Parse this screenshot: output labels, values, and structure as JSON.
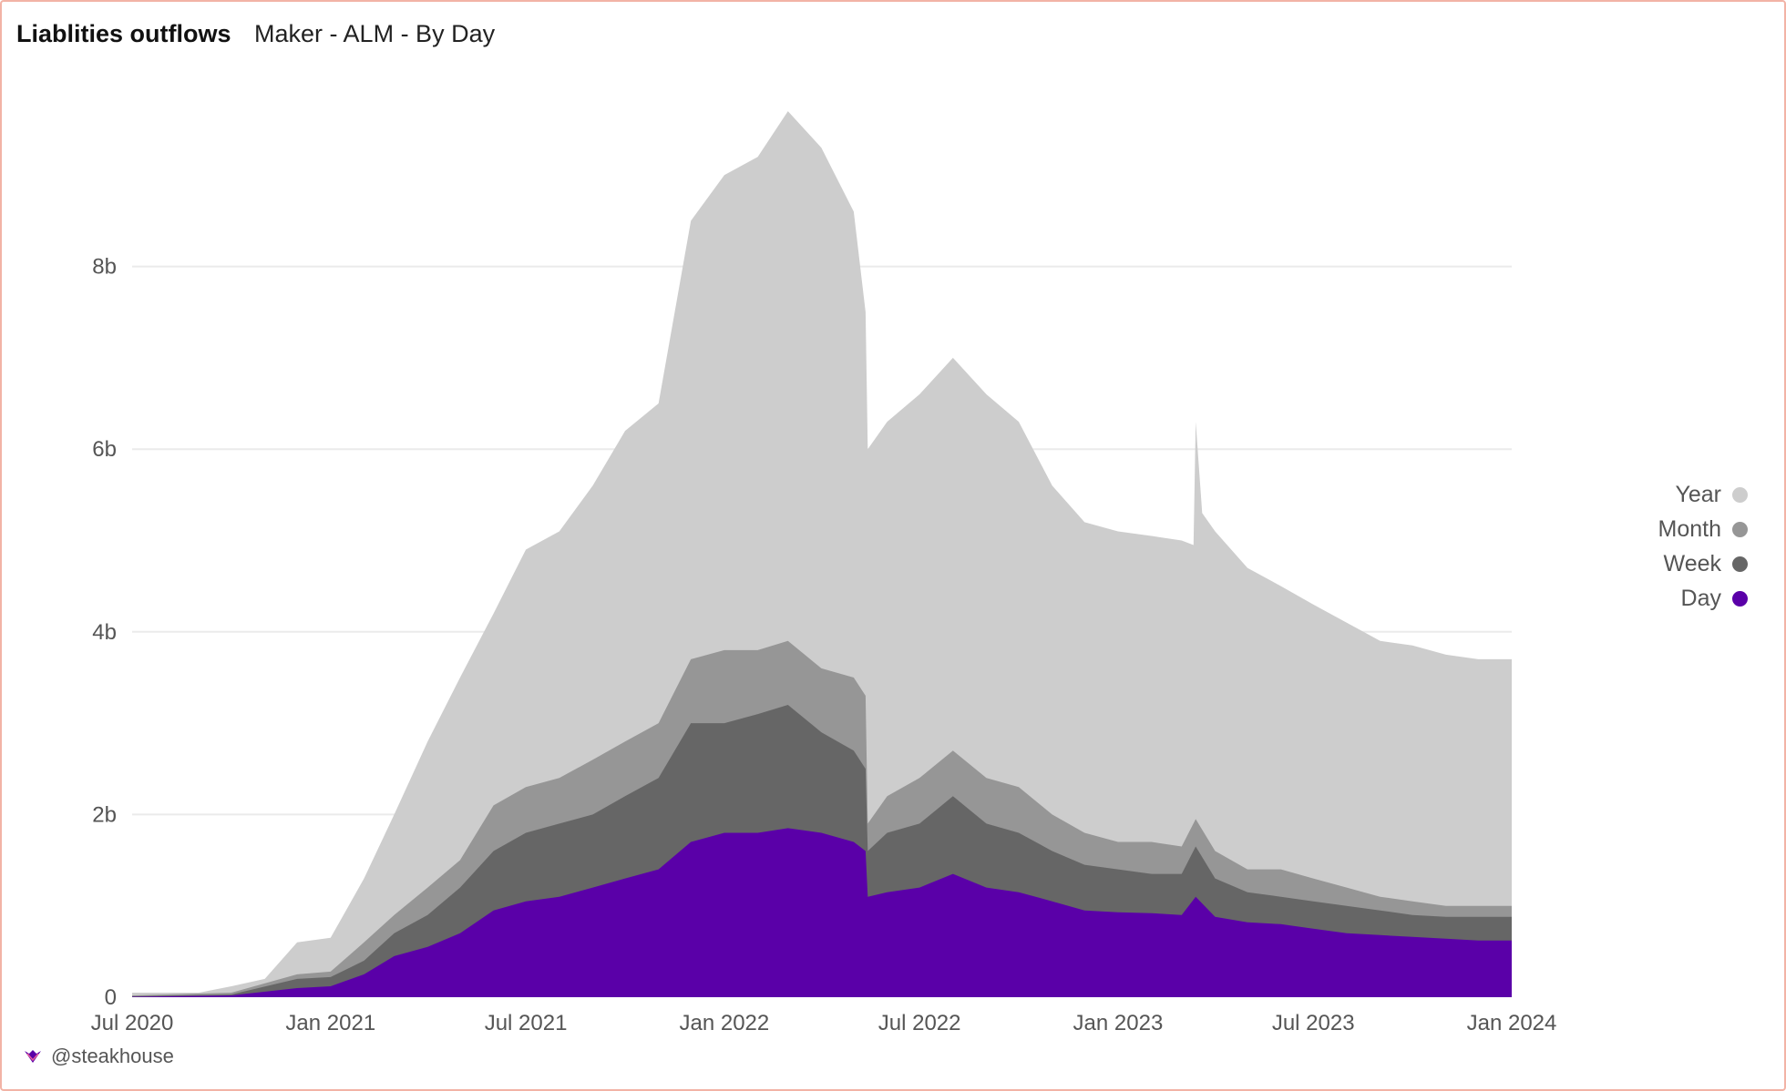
{
  "header": {
    "title": "Liablities outflows",
    "subtitle": "Maker - ALM - By Day"
  },
  "footer": {
    "handle": "@steakhouse"
  },
  "colors": {
    "Year": "#cdcdcd",
    "Month": "#969696",
    "Week": "#666666",
    "Day": "#5a00a8",
    "grid": "#ebebeb"
  },
  "chart_data": {
    "type": "area",
    "stacked": false,
    "y_tick_labels": [
      "0",
      "2b",
      "4b",
      "6b",
      "8b"
    ],
    "y_ticks": [
      0,
      2000000000,
      4000000000,
      6000000000,
      8000000000
    ],
    "ylim": [
      0,
      10000000000
    ],
    "x_tick_labels": [
      "Jul 2020",
      "Jan 2021",
      "Jul 2021",
      "Jan 2022",
      "Jul 2022",
      "Jan 2023",
      "Jul 2023",
      "Jan 2024"
    ],
    "x_ticks": [
      "2020-07-01",
      "2021-01-01",
      "2021-07-01",
      "2022-01-01",
      "2022-07-01",
      "2023-01-01",
      "2023-07-01",
      "2024-01-01"
    ],
    "xlim": [
      "2020-07-01",
      "2024-01-01"
    ],
    "grid": true,
    "legend_position": "right",
    "series": [
      {
        "name": "Year",
        "points": [
          [
            "2020-07-01",
            50000000.0
          ],
          [
            "2020-09-01",
            50000000.0
          ],
          [
            "2020-10-01",
            120000000.0
          ],
          [
            "2020-11-01",
            200000000.0
          ],
          [
            "2020-12-01",
            600000000.0
          ],
          [
            "2021-01-01",
            650000000.0
          ],
          [
            "2021-02-01",
            1300000000.0
          ],
          [
            "2021-03-01",
            2000000000.0
          ],
          [
            "2021-04-01",
            2800000000.0
          ],
          [
            "2021-05-01",
            3500000000.0
          ],
          [
            "2021-06-01",
            4200000000.0
          ],
          [
            "2021-07-01",
            4900000000.0
          ],
          [
            "2021-08-01",
            5100000000.0
          ],
          [
            "2021-09-01",
            5600000000.0
          ],
          [
            "2021-10-01",
            6200000000.0
          ],
          [
            "2021-11-01",
            6500000000.0
          ],
          [
            "2021-12-01",
            8500000000.0
          ],
          [
            "2022-01-01",
            9000000000.0
          ],
          [
            "2022-02-01",
            9200000000.0
          ],
          [
            "2022-03-01",
            9700000000.0
          ],
          [
            "2022-04-01",
            9300000000.0
          ],
          [
            "2022-05-01",
            8600000000.0
          ],
          [
            "2022-05-12",
            7500000000.0
          ],
          [
            "2022-05-14",
            6000000000.0
          ],
          [
            "2022-06-01",
            6300000000.0
          ],
          [
            "2022-07-01",
            6600000000.0
          ],
          [
            "2022-08-01",
            7000000000.0
          ],
          [
            "2022-09-01",
            6600000000.0
          ],
          [
            "2022-10-01",
            6300000000.0
          ],
          [
            "2022-11-01",
            5600000000.0
          ],
          [
            "2022-12-01",
            5200000000.0
          ],
          [
            "2023-01-01",
            5100000000.0
          ],
          [
            "2023-02-01",
            5050000000.0
          ],
          [
            "2023-03-01",
            5000000000.0
          ],
          [
            "2023-03-12",
            4950000000.0
          ],
          [
            "2023-03-14",
            6300000000.0
          ],
          [
            "2023-03-20",
            5300000000.0
          ],
          [
            "2023-04-01",
            5100000000.0
          ],
          [
            "2023-05-01",
            4700000000.0
          ],
          [
            "2023-06-01",
            4500000000.0
          ],
          [
            "2023-07-01",
            4300000000.0
          ],
          [
            "2023-08-01",
            4100000000.0
          ],
          [
            "2023-09-01",
            3900000000.0
          ],
          [
            "2023-10-01",
            3850000000.0
          ],
          [
            "2023-11-01",
            3750000000.0
          ],
          [
            "2023-12-01",
            3700000000.0
          ],
          [
            "2024-01-01",
            3700000000.0
          ]
        ]
      },
      {
        "name": "Month",
        "points": [
          [
            "2020-07-01",
            20000000.0
          ],
          [
            "2020-10-01",
            50000000.0
          ],
          [
            "2020-12-01",
            250000000.0
          ],
          [
            "2021-01-01",
            280000000.0
          ],
          [
            "2021-02-01",
            600000000.0
          ],
          [
            "2021-03-01",
            900000000.0
          ],
          [
            "2021-04-01",
            1200000000.0
          ],
          [
            "2021-05-01",
            1500000000.0
          ],
          [
            "2021-06-01",
            2100000000.0
          ],
          [
            "2021-07-01",
            2300000000.0
          ],
          [
            "2021-08-01",
            2400000000.0
          ],
          [
            "2021-09-01",
            2600000000.0
          ],
          [
            "2021-10-01",
            2800000000.0
          ],
          [
            "2021-11-01",
            3000000000.0
          ],
          [
            "2021-12-01",
            3700000000.0
          ],
          [
            "2022-01-01",
            3800000000.0
          ],
          [
            "2022-02-01",
            3800000000.0
          ],
          [
            "2022-03-01",
            3900000000.0
          ],
          [
            "2022-04-01",
            3600000000.0
          ],
          [
            "2022-05-01",
            3500000000.0
          ],
          [
            "2022-05-12",
            3300000000.0
          ],
          [
            "2022-05-14",
            1900000000.0
          ],
          [
            "2022-06-01",
            2200000000.0
          ],
          [
            "2022-07-01",
            2400000000.0
          ],
          [
            "2022-08-01",
            2700000000.0
          ],
          [
            "2022-09-01",
            2400000000.0
          ],
          [
            "2022-10-01",
            2300000000.0
          ],
          [
            "2022-11-01",
            2000000000.0
          ],
          [
            "2022-12-01",
            1800000000.0
          ],
          [
            "2023-01-01",
            1700000000.0
          ],
          [
            "2023-02-01",
            1700000000.0
          ],
          [
            "2023-03-01",
            1650000000.0
          ],
          [
            "2023-03-14",
            1950000000.0
          ],
          [
            "2023-04-01",
            1600000000.0
          ],
          [
            "2023-05-01",
            1400000000.0
          ],
          [
            "2023-06-01",
            1400000000.0
          ],
          [
            "2023-07-01",
            1300000000.0
          ],
          [
            "2023-08-01",
            1200000000.0
          ],
          [
            "2023-09-01",
            1100000000.0
          ],
          [
            "2023-10-01",
            1050000000.0
          ],
          [
            "2023-11-01",
            1000000000.0
          ],
          [
            "2023-12-01",
            1000000000.0
          ],
          [
            "2024-01-01",
            1000000000.0
          ]
        ]
      },
      {
        "name": "Week",
        "points": [
          [
            "2020-07-01",
            10000000.0
          ],
          [
            "2020-10-01",
            30000000.0
          ],
          [
            "2020-12-01",
            200000000.0
          ],
          [
            "2021-01-01",
            220000000.0
          ],
          [
            "2021-02-01",
            400000000.0
          ],
          [
            "2021-03-01",
            700000000.0
          ],
          [
            "2021-04-01",
            900000000.0
          ],
          [
            "2021-05-01",
            1200000000.0
          ],
          [
            "2021-06-01",
            1600000000.0
          ],
          [
            "2021-07-01",
            1800000000.0
          ],
          [
            "2021-08-01",
            1900000000.0
          ],
          [
            "2021-09-01",
            2000000000.0
          ],
          [
            "2021-10-01",
            2200000000.0
          ],
          [
            "2021-11-01",
            2400000000.0
          ],
          [
            "2021-12-01",
            3000000000.0
          ],
          [
            "2022-01-01",
            3000000000.0
          ],
          [
            "2022-02-01",
            3100000000.0
          ],
          [
            "2022-03-01",
            3200000000.0
          ],
          [
            "2022-04-01",
            2900000000.0
          ],
          [
            "2022-05-01",
            2700000000.0
          ],
          [
            "2022-05-12",
            2500000000.0
          ],
          [
            "2022-05-14",
            1600000000.0
          ],
          [
            "2022-06-01",
            1800000000.0
          ],
          [
            "2022-07-01",
            1900000000.0
          ],
          [
            "2022-08-01",
            2200000000.0
          ],
          [
            "2022-09-01",
            1900000000.0
          ],
          [
            "2022-10-01",
            1800000000.0
          ],
          [
            "2022-11-01",
            1600000000.0
          ],
          [
            "2022-12-01",
            1450000000.0
          ],
          [
            "2023-01-01",
            1400000000.0
          ],
          [
            "2023-02-01",
            1350000000.0
          ],
          [
            "2023-03-01",
            1350000000.0
          ],
          [
            "2023-03-14",
            1650000000.0
          ],
          [
            "2023-04-01",
            1300000000.0
          ],
          [
            "2023-05-01",
            1150000000.0
          ],
          [
            "2023-06-01",
            1100000000.0
          ],
          [
            "2023-07-01",
            1050000000.0
          ],
          [
            "2023-08-01",
            1000000000.0
          ],
          [
            "2023-09-01",
            950000000.0
          ],
          [
            "2023-10-01",
            900000000.0
          ],
          [
            "2023-11-01",
            880000000.0
          ],
          [
            "2023-12-01",
            880000000.0
          ],
          [
            "2024-01-01",
            880000000.0
          ]
        ]
      },
      {
        "name": "Day",
        "points": [
          [
            "2020-07-01",
            5000000.0
          ],
          [
            "2020-10-01",
            20000000.0
          ],
          [
            "2020-12-01",
            100000000.0
          ],
          [
            "2021-01-01",
            120000000.0
          ],
          [
            "2021-02-01",
            250000000.0
          ],
          [
            "2021-03-01",
            450000000.0
          ],
          [
            "2021-04-01",
            550000000.0
          ],
          [
            "2021-05-01",
            700000000.0
          ],
          [
            "2021-06-01",
            950000000.0
          ],
          [
            "2021-07-01",
            1050000000.0
          ],
          [
            "2021-08-01",
            1100000000.0
          ],
          [
            "2021-09-01",
            1200000000.0
          ],
          [
            "2021-10-01",
            1300000000.0
          ],
          [
            "2021-11-01",
            1400000000.0
          ],
          [
            "2021-12-01",
            1700000000.0
          ],
          [
            "2022-01-01",
            1800000000.0
          ],
          [
            "2022-02-01",
            1800000000.0
          ],
          [
            "2022-03-01",
            1850000000.0
          ],
          [
            "2022-04-01",
            1800000000.0
          ],
          [
            "2022-05-01",
            1700000000.0
          ],
          [
            "2022-05-12",
            1600000000.0
          ],
          [
            "2022-05-14",
            1100000000.0
          ],
          [
            "2022-06-01",
            1150000000.0
          ],
          [
            "2022-07-01",
            1200000000.0
          ],
          [
            "2022-08-01",
            1350000000.0
          ],
          [
            "2022-09-01",
            1200000000.0
          ],
          [
            "2022-10-01",
            1150000000.0
          ],
          [
            "2022-11-01",
            1050000000.0
          ],
          [
            "2022-12-01",
            950000000.0
          ],
          [
            "2023-01-01",
            930000000.0
          ],
          [
            "2023-02-01",
            920000000.0
          ],
          [
            "2023-03-01",
            900000000.0
          ],
          [
            "2023-03-14",
            1100000000.0
          ],
          [
            "2023-04-01",
            880000000.0
          ],
          [
            "2023-05-01",
            820000000.0
          ],
          [
            "2023-06-01",
            800000000.0
          ],
          [
            "2023-07-01",
            750000000.0
          ],
          [
            "2023-08-01",
            700000000.0
          ],
          [
            "2023-09-01",
            680000000.0
          ],
          [
            "2023-10-01",
            660000000.0
          ],
          [
            "2023-11-01",
            640000000.0
          ],
          [
            "2023-12-01",
            620000000.0
          ],
          [
            "2024-01-01",
            620000000.0
          ]
        ]
      }
    ]
  }
}
